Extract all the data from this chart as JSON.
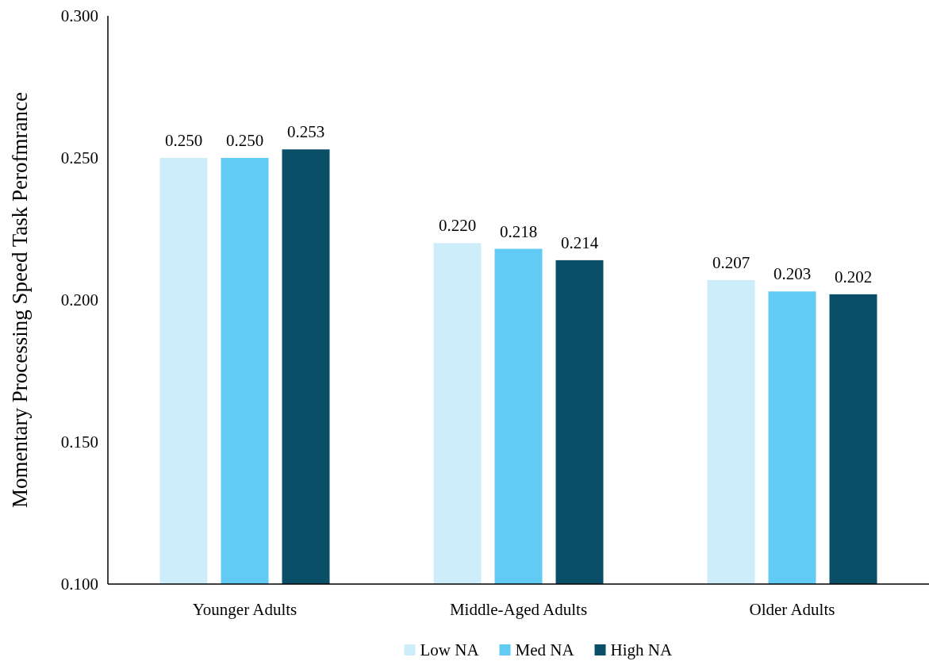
{
  "chart_data": {
    "type": "bar",
    "ylabel": "Momentary Processing Speed Task Perofmrance",
    "categories": [
      "Younger Adults",
      "Middle-Aged Adults",
      "Older Adults"
    ],
    "series": [
      {
        "name": "Low NA",
        "color": "#cdedfa",
        "values": [
          0.25,
          0.22,
          0.207
        ],
        "value_labels": [
          "0.250",
          "0.220",
          "0.207"
        ]
      },
      {
        "name": "Med NA",
        "color": "#62cbf3",
        "values": [
          0.25,
          0.218,
          0.203
        ],
        "value_labels": [
          "0.250",
          "0.218",
          "0.203"
        ]
      },
      {
        "name": "High NA",
        "color": "#0a4f67",
        "values": [
          0.253,
          0.214,
          0.202
        ],
        "value_labels": [
          "0.253",
          "0.214",
          "0.202"
        ]
      }
    ],
    "ylim": [
      0.1,
      0.3
    ],
    "yticks": [
      {
        "value": 0.1,
        "label": "0.100"
      },
      {
        "value": 0.15,
        "label": "0.150"
      },
      {
        "value": 0.2,
        "label": "0.200"
      },
      {
        "value": 0.25,
        "label": "0.250"
      },
      {
        "value": 0.3,
        "label": "0.300"
      }
    ],
    "grid": false,
    "legend": "bottom"
  }
}
